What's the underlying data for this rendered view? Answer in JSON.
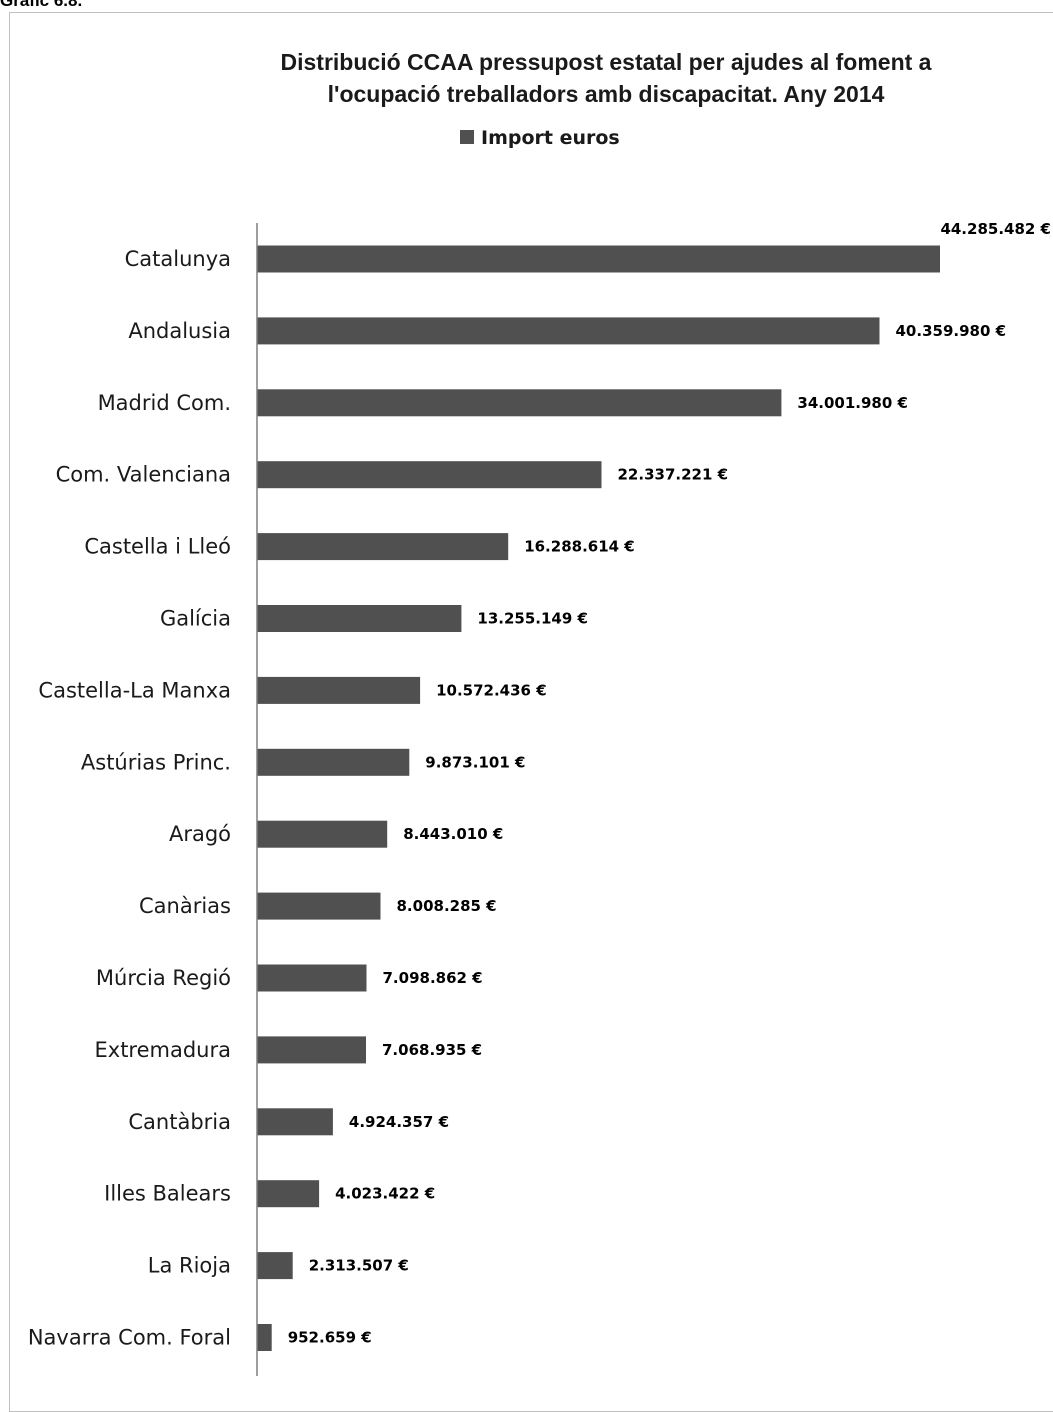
{
  "caption": "Gràfic 6.8.",
  "chart_data": {
    "type": "bar",
    "orientation": "horizontal",
    "title_lines": [
      "Distribució CCAA pressupost estatal per ajudes al foment a",
      "l'ocupació treballadors amb discapacitat. Any 2014"
    ],
    "legend": {
      "position": "top",
      "label": "Import euros"
    },
    "series_color": "#505050",
    "categories": [
      "Catalunya",
      "Andalusia",
      "Madrid Com.",
      "Com. Valenciana",
      "Castella i Lleó",
      "Galícia",
      "Castella-La Manxa",
      "Astúrias Princ.",
      "Aragó",
      "Canàrias",
      "Múrcia Regió",
      "Extremadura",
      "Cantàbria",
      "Illes Balears",
      "La Rioja",
      "Navarra Com. Foral"
    ],
    "series": [
      {
        "name": "Import euros",
        "values": [
          44285482,
          40359980,
          34001980,
          22337221,
          16288614,
          13255149,
          10572436,
          9873101,
          8443010,
          8008285,
          7098862,
          7068935,
          4924357,
          4023422,
          2313507,
          952659
        ]
      }
    ],
    "value_labels": [
      "44.285.482 €",
      "40.359.980 €",
      "34.001.980 €",
      "22.337.221 €",
      "16.288.614 €",
      "13.255.149 €",
      "10.572.436 €",
      "9.873.101 €",
      "8.443.010 €",
      "8.008.285 €",
      "7.098.862 €",
      "7.068.935 €",
      "4.924.357 €",
      "4.023.422 €",
      "2.313.507 €",
      "952.659 €"
    ],
    "grid": false
  }
}
